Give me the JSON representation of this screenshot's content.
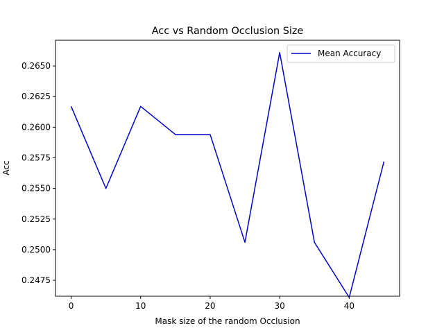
{
  "chart_data": {
    "type": "line",
    "title": "Acc vs Random Occlusion Size",
    "xlabel": "Mask size of the random Occlusion",
    "ylabel": "Acc",
    "xlim": [
      -2.25,
      47.25
    ],
    "ylim": [
      0.2462,
      0.2671
    ],
    "xticks": [
      0,
      10,
      20,
      30,
      40
    ],
    "xtick_labels": [
      "0",
      "10",
      "20",
      "30",
      "40"
    ],
    "yticks": [
      0.2475,
      0.25,
      0.2525,
      0.255,
      0.2575,
      0.26,
      0.2625,
      0.265
    ],
    "ytick_labels": [
      "0.2475",
      "0.2500",
      "0.2525",
      "0.2550",
      "0.2575",
      "0.2600",
      "0.2625",
      "0.2650"
    ],
    "grid": false,
    "legend_position": "top-right",
    "x": [
      0,
      5,
      10,
      15,
      20,
      25,
      30,
      35,
      40,
      45
    ],
    "series": [
      {
        "name": "Mean Accuracy",
        "color": "#0000cc",
        "values": [
          0.2617,
          0.255,
          0.2617,
          0.2594,
          0.2594,
          0.2506,
          0.2661,
          0.2506,
          0.2461,
          0.2572
        ]
      }
    ]
  }
}
